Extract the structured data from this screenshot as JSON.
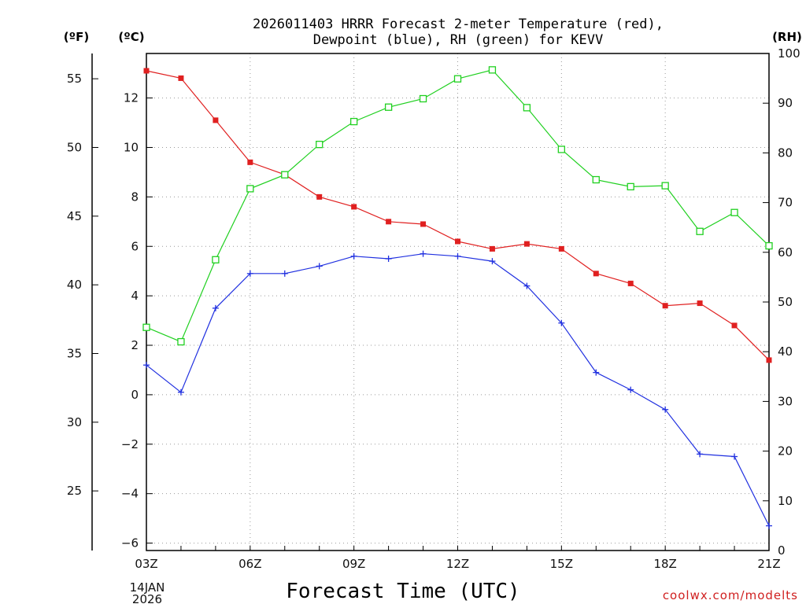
{
  "chart_data": {
    "type": "line",
    "title": [
      "2026011403 HRRR Forecast 2-meter Temperature (red),",
      "Dewpoint (blue), RH (green) for KEVV"
    ],
    "axis_units": {
      "left_f": "(ºF)",
      "left_c": "(ºC)",
      "right_rh": "(RH)"
    },
    "xlabel": "Forecast Time (UTC)",
    "x_hours": [
      3,
      4,
      5,
      6,
      7,
      8,
      9,
      10,
      11,
      12,
      13,
      14,
      15,
      16,
      17,
      18,
      19,
      20,
      21
    ],
    "xlim": [
      3,
      21
    ],
    "xticks": [
      {
        "hour": 3,
        "label": "03Z"
      },
      {
        "hour": 6,
        "label": "06Z"
      },
      {
        "hour": 9,
        "label": "09Z"
      },
      {
        "hour": 12,
        "label": "12Z"
      },
      {
        "hour": 15,
        "label": "15Z"
      },
      {
        "hour": 18,
        "label": "18Z"
      },
      {
        "hour": 21,
        "label": "21Z"
      }
    ],
    "date_labels": [
      "14JAN",
      "2026"
    ],
    "ylim_c": [
      -6.3,
      13.8
    ],
    "yticks_c": [
      "-6",
      "-4",
      "-2",
      "0",
      "2",
      "4",
      "6",
      "8",
      "10",
      "12"
    ],
    "yticks_f": [
      "25",
      "30",
      "35",
      "40",
      "45",
      "50",
      "55"
    ],
    "ylim_rh": [
      0,
      100
    ],
    "yticks_rh": [
      "0",
      "10",
      "20",
      "30",
      "40",
      "50",
      "60",
      "70",
      "80",
      "90",
      "100"
    ],
    "series": [
      {
        "name": "Temperature",
        "axis": "c",
        "color": "#e02020",
        "marker": "filled-square",
        "values": [
          13.1,
          12.8,
          11.1,
          9.4,
          8.9,
          8.0,
          7.6,
          7.0,
          6.9,
          6.2,
          5.9,
          6.1,
          5.9,
          4.9,
          4.5,
          3.6,
          3.7,
          2.8,
          1.4
        ]
      },
      {
        "name": "Dewpoint",
        "axis": "c",
        "color": "#2030e0",
        "marker": "plus",
        "values": [
          1.2,
          0.1,
          3.5,
          4.9,
          4.9,
          5.2,
          5.6,
          5.5,
          5.7,
          5.6,
          5.4,
          4.4,
          2.9,
          0.9,
          0.2,
          -0.6,
          -2.4,
          -2.5,
          -5.3
        ]
      },
      {
        "name": "RH",
        "axis": "rh",
        "color": "#20d020",
        "marker": "open-square",
        "values": [
          44.9,
          42.0,
          58.5,
          72.8,
          75.6,
          81.7,
          86.3,
          89.2,
          90.9,
          94.9,
          96.7,
          89.1,
          80.7,
          74.6,
          73.2,
          73.4,
          64.2,
          68.0,
          61.3
        ]
      }
    ]
  },
  "watermark": "coolwx.com/modelts"
}
